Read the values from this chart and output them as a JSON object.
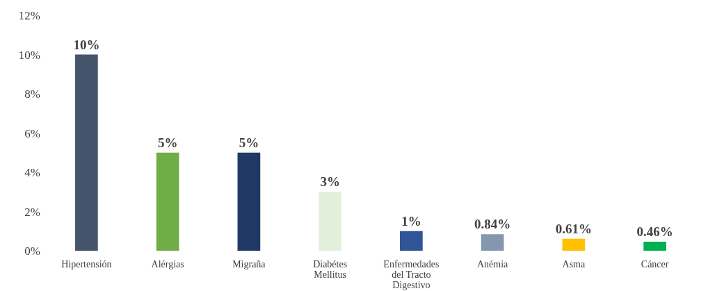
{
  "chart_data": {
    "type": "bar",
    "categories": [
      "Hipertensión",
      "Alérgias",
      "Migraña",
      "Diabétes Mellitus",
      "Enfermedades del Tracto Digestivo",
      "Anémia",
      "Asma",
      "Cáncer"
    ],
    "values": [
      10,
      5,
      5,
      3,
      1,
      0.84,
      0.61,
      0.46
    ],
    "colors": [
      "#44546a",
      "#70ad47",
      "#203864",
      "#e2efda",
      "#2f5597",
      "#8497b0",
      "#ffc000",
      "#00b050"
    ],
    "value_labels": [
      "10%",
      "5%",
      "5%",
      "3%",
      "1%",
      "0.84%",
      "0.61%",
      "0.46%"
    ],
    "ylim": [
      0,
      12
    ],
    "yticks": [
      {
        "value": 0,
        "label": "0%"
      },
      {
        "value": 2,
        "label": "2%"
      },
      {
        "value": 4,
        "label": "4%"
      },
      {
        "value": 6,
        "label": "6%"
      },
      {
        "value": 8,
        "label": "8%"
      },
      {
        "value": 10,
        "label": "10%"
      },
      {
        "value": 12,
        "label": "12%"
      }
    ],
    "grid": false,
    "legend": false
  }
}
